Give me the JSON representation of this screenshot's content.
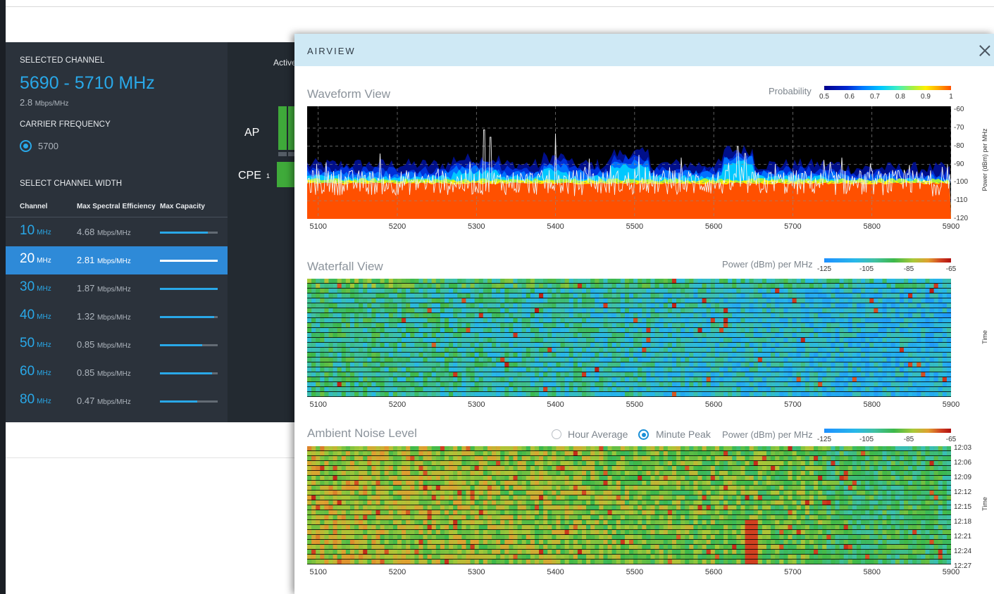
{
  "sidebar": {
    "selected_channel_label": "SELECTED CHANNEL",
    "selected_range": "5690 - 5710 MHz",
    "selected_eff_value": "2.8",
    "selected_eff_unit": "Mbps/MHz",
    "carrier_label": "CARRIER FREQUENCY",
    "carrier_value": "5700",
    "width_label": "SELECT CHANNEL WIDTH",
    "columns": [
      "Channel",
      "Max Spectral Efficiency",
      "Max Capacity"
    ],
    "rows": [
      {
        "width": "10",
        "unit": "MHz",
        "eff": "4.68",
        "eff_unit": "Mbps/MHz",
        "capacity": 0.83,
        "active": false
      },
      {
        "width": "20",
        "unit": "MHz",
        "eff": "2.81",
        "eff_unit": "Mbps/MHz",
        "capacity": 1.0,
        "active": true
      },
      {
        "width": "30",
        "unit": "MHz",
        "eff": "1.87",
        "eff_unit": "Mbps/MHz",
        "capacity": 1.0,
        "active": false
      },
      {
        "width": "40",
        "unit": "MHz",
        "eff": "1.32",
        "eff_unit": "Mbps/MHz",
        "capacity": 0.94,
        "active": false
      },
      {
        "width": "50",
        "unit": "MHz",
        "eff": "0.85",
        "eff_unit": "Mbps/MHz",
        "capacity": 0.73,
        "active": false
      },
      {
        "width": "60",
        "unit": "MHz",
        "eff": "0.85",
        "eff_unit": "Mbps/MHz",
        "capacity": 0.9,
        "active": false
      },
      {
        "width": "80",
        "unit": "MHz",
        "eff": "0.47",
        "eff_unit": "Mbps/MHz",
        "capacity": 0.65,
        "active": false
      }
    ]
  },
  "middle": {
    "active_label": "Active",
    "ap_label": "AP",
    "cpe_label": "CPE",
    "cpe_count": "1"
  },
  "airview": {
    "title": "AIRVIEW",
    "waveform": {
      "title": "Waveform View",
      "legend_title": "Probability",
      "legend_ticks": [
        "0.5",
        "0.6",
        "0.7",
        "0.8",
        "0.9",
        "1"
      ],
      "y_ticks": [
        "-60",
        "-70",
        "-80",
        "-90",
        "-100",
        "-110",
        "-120"
      ],
      "y_label": "Power (dBm) per MHz"
    },
    "waterfall": {
      "title": "Waterfall View",
      "legend_title": "Power (dBm) per MHz",
      "legend_ticks": [
        "-125",
        "-105",
        "-85",
        "-65"
      ],
      "y_label": "Time"
    },
    "ambient": {
      "title": "Ambient Noise Level",
      "option_hour": "Hour Average",
      "option_minute": "Minute Peak",
      "selected_option": "Minute Peak",
      "legend_title": "Power (dBm) per MHz",
      "legend_ticks": [
        "-125",
        "-105",
        "-85",
        "-65"
      ],
      "time_ticks": [
        "12:03",
        "12:06",
        "12:09",
        "12:12",
        "12:15",
        "12:18",
        "12:21",
        "12:24",
        "12:27"
      ],
      "y_label": "Time"
    },
    "x_ticks": [
      "5100",
      "5200",
      "5300",
      "5400",
      "5500",
      "5600",
      "5700",
      "5800",
      "5900"
    ]
  },
  "chart_data": [
    {
      "type": "line",
      "title": "Waveform View",
      "x_unit": "MHz",
      "xlim": [
        5086,
        5900
      ],
      "ylim": [
        -120,
        -58
      ],
      "ylabel": "Power (dBm) per MHz",
      "colorbar": {
        "label": "Probability",
        "range": [
          0.5,
          1
        ]
      },
      "noise_floor_approx": -100,
      "peaks": [
        {
          "x": 5310,
          "y": -71
        },
        {
          "x": 5318,
          "y": -75
        },
        {
          "x": 5400,
          "y": -73
        },
        {
          "x": 5630,
          "y": -80
        },
        {
          "x": 5640,
          "y": -84
        }
      ]
    },
    {
      "type": "heatmap",
      "title": "Waterfall View",
      "x_unit": "MHz",
      "xlim": [
        5086,
        5900
      ],
      "ylabel": "Time",
      "colorbar": {
        "label": "Power (dBm) per MHz",
        "range": [
          -125,
          -65
        ]
      }
    },
    {
      "type": "heatmap",
      "title": "Ambient Noise Level",
      "x_unit": "MHz",
      "xlim": [
        5086,
        5900
      ],
      "y": [
        "12:03",
        "12:06",
        "12:09",
        "12:12",
        "12:15",
        "12:18",
        "12:21",
        "12:24",
        "12:27"
      ],
      "ylabel": "Time",
      "colorbar": {
        "label": "Power (dBm) per MHz",
        "range": [
          -125,
          -65
        ]
      }
    }
  ]
}
